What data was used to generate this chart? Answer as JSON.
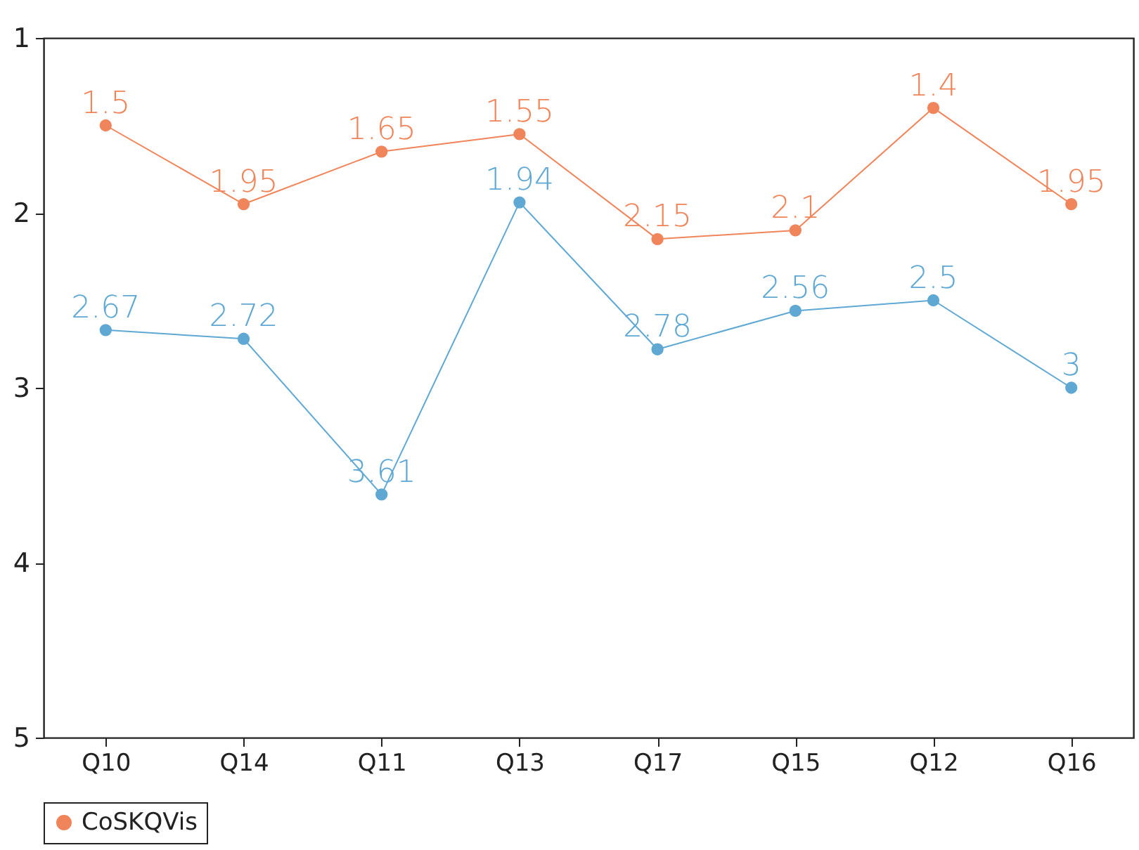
{
  "chart_data": {
    "type": "line",
    "categories": [
      "Q10",
      "Q14",
      "Q11",
      "Q13",
      "Q17",
      "Q15",
      "Q12",
      "Q16"
    ],
    "series": [
      {
        "name": "CoSKQVis",
        "color": "#f0845a",
        "values": [
          1.5,
          1.95,
          1.65,
          1.55,
          2.15,
          2.1,
          1.4,
          1.95
        ]
      },
      {
        "color": "#5fa8d3",
        "values": [
          2.67,
          2.72,
          3.61,
          1.94,
          2.78,
          2.56,
          2.5,
          3
        ]
      }
    ],
    "ylim": [
      5,
      1
    ],
    "yticks": [
      1,
      2,
      3,
      4,
      5
    ],
    "grid": false,
    "legend": "bottom",
    "marker": "circle",
    "line_style": "solid",
    "data_labels": true
  }
}
